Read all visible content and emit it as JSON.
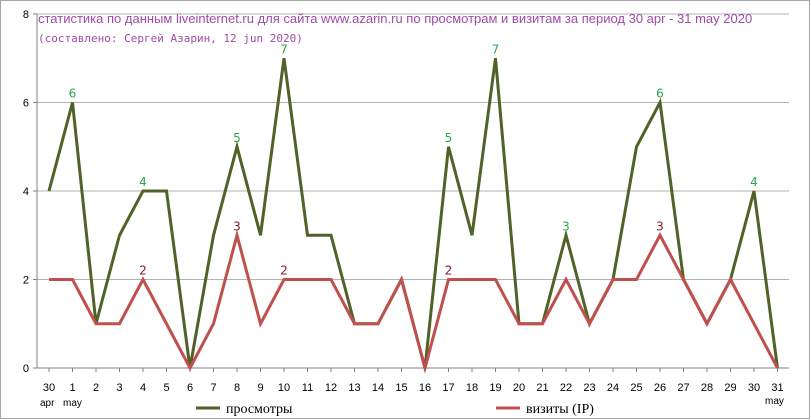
{
  "chart_data": {
    "type": "line",
    "title": "статистика по данным liveinternet.ru для сайта www.azarin.ru по просмотрам и визитам за период 30 apr - 31 may 2020",
    "subtitle": "(составлено: Сергей Азарин, 12 jun 2020)",
    "x": [
      "30",
      "1",
      "2",
      "3",
      "4",
      "5",
      "6",
      "7",
      "8",
      "9",
      "10",
      "11",
      "12",
      "13",
      "14",
      "15",
      "16",
      "17",
      "18",
      "19",
      "20",
      "21",
      "22",
      "23",
      "24",
      "25",
      "26",
      "27",
      "28",
      "29",
      "30",
      "31"
    ],
    "month_labels": {
      "first": "apr",
      "second": "may",
      "last": "may"
    },
    "ylim": [
      0,
      8
    ],
    "yticks": [
      0,
      2,
      4,
      6,
      8
    ],
    "grid": true,
    "legend_position": "bottom",
    "title_color": "#a04aa8",
    "series": [
      {
        "name": "просмотры",
        "color": "#4f6228",
        "label_color": "#29a847",
        "values": [
          4,
          6,
          1,
          3,
          4,
          4,
          0,
          3,
          5,
          3,
          7,
          3,
          3,
          1,
          1,
          2,
          0,
          5,
          3,
          7,
          1,
          1,
          3,
          1,
          2,
          5,
          6,
          2,
          1,
          2,
          4,
          0
        ],
        "labels": [
          {
            "index": 1,
            "text": "6"
          },
          {
            "index": 4,
            "text": "4"
          },
          {
            "index": 8,
            "text": "5"
          },
          {
            "index": 10,
            "text": "7"
          },
          {
            "index": 17,
            "text": "5"
          },
          {
            "index": 19,
            "text": "7"
          },
          {
            "index": 22,
            "text": "3"
          },
          {
            "index": 26,
            "text": "6"
          },
          {
            "index": 30,
            "text": "4"
          }
        ]
      },
      {
        "name": "визиты (IP)",
        "color": "#c0504d",
        "label_color": "#8b1a2b",
        "values": [
          2,
          2,
          1,
          1,
          2,
          1,
          0,
          1,
          3,
          1,
          2,
          2,
          2,
          1,
          1,
          2,
          0,
          2,
          2,
          2,
          1,
          1,
          2,
          1,
          2,
          2,
          3,
          2,
          1,
          2,
          1,
          0
        ],
        "labels": [
          {
            "index": 4,
            "text": "2"
          },
          {
            "index": 8,
            "text": "3"
          },
          {
            "index": 10,
            "text": "2"
          },
          {
            "index": 17,
            "text": "2"
          },
          {
            "index": 26,
            "text": "3"
          }
        ]
      }
    ]
  }
}
